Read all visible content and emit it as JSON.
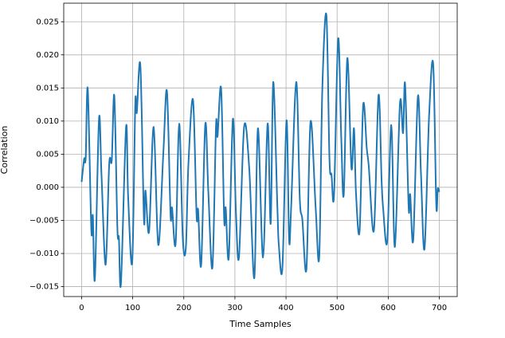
{
  "chart_data": {
    "type": "line",
    "xlabel": "Time Samples",
    "ylabel": "Correlation",
    "xlim": [
      -35,
      735
    ],
    "ylim": [
      -0.0165,
      0.0278
    ],
    "xticks": [
      0,
      100,
      200,
      300,
      400,
      500,
      600,
      700
    ],
    "yticks": [
      {
        "value": -0.015,
        "label": "−0.015"
      },
      {
        "value": -0.01,
        "label": "−0.010"
      },
      {
        "value": -0.005,
        "label": "−0.005"
      },
      {
        "value": 0,
        "label": "0.000"
      },
      {
        "value": 0.005,
        "label": "0.005"
      },
      {
        "value": 0.01,
        "label": "0.010"
      },
      {
        "value": 0.015,
        "label": "0.015"
      },
      {
        "value": 0.02,
        "label": "0.020"
      },
      {
        "value": 0.025,
        "label": "0.025"
      }
    ],
    "grid": true,
    "series": [
      {
        "color": "#1f77b4",
        "x": [
          0,
          5,
          8,
          12,
          19,
          22,
          26,
          34,
          39,
          47,
          54,
          59,
          64,
          70,
          73,
          77,
          87,
          91,
          99,
          105,
          108,
          115,
          122,
          125,
          132,
          141,
          150,
          160,
          167,
          174,
          177,
          184,
          191,
          198,
          204,
          209,
          218,
          225,
          228,
          234,
          242,
          248,
          256,
          263,
          266,
          273,
          279,
          282,
          288,
          296,
          302,
          308,
          318,
          328,
          338,
          345,
          355,
          364,
          370,
          375,
          383,
          386,
          393,
          401,
          406,
          410,
          420,
          427,
          432,
          440,
          448,
          458,
          465,
          471,
          479,
          485,
          489,
          494,
          502,
          508,
          513,
          520,
          528,
          533,
          537,
          544,
          551,
          558,
          562,
          572,
          581,
          587,
          590,
          598,
          606,
          613,
          623,
          629,
          633,
          640,
          643,
          649,
          658,
          664,
          671,
          680,
          688,
          694,
          697,
          700
        ],
        "values": [
          0.0008,
          0.0043,
          0.0044,
          0.0149,
          -0.0064,
          -0.0043,
          -0.0138,
          0.0103,
          0.0017,
          -0.0117,
          0.0035,
          0.0041,
          0.0138,
          -0.0061,
          -0.0077,
          -0.0145,
          0.0091,
          -0.0013,
          -0.0113,
          0.0125,
          0.0113,
          0.0184,
          -0.0049,
          -0.0005,
          -0.0067,
          0.0091,
          -0.0087,
          0.0053,
          0.0145,
          -0.0041,
          -0.0031,
          -0.0085,
          0.0096,
          -0.0077,
          -0.0091,
          0.0035,
          0.0132,
          -0.0043,
          -0.0034,
          -0.0117,
          0.0095,
          -0.0007,
          -0.0121,
          0.0093,
          0.0077,
          0.0149,
          -0.0049,
          -0.0031,
          -0.0106,
          0.0103,
          -0.0038,
          -0.0105,
          0.0091,
          0.0029,
          -0.0137,
          0.0089,
          -0.0106,
          0.0096,
          -0.0055,
          0.0159,
          -0.0028,
          -0.0088,
          -0.0121,
          0.0101,
          -0.0079,
          -0.0031,
          0.0159,
          -0.0018,
          -0.0049,
          -0.0123,
          0.0099,
          -0.0031,
          -0.0105,
          0.0147,
          0.026,
          0.0043,
          0.0019,
          -0.0011,
          0.0224,
          0.0077,
          -0.0011,
          0.0195,
          0.0029,
          0.0089,
          -0.001,
          -0.0066,
          0.0124,
          0.0059,
          0.0031,
          -0.0065,
          0.0139,
          0.0011,
          -0.0031,
          -0.0082,
          0.0094,
          -0.009,
          0.0127,
          0.0082,
          0.0156,
          -0.0031,
          -0.0011,
          -0.0079,
          0.0137,
          0.0023,
          -0.0093,
          0.0108,
          0.0186,
          -0.0026,
          -0.0002,
          -0.0007
        ]
      }
    ]
  }
}
